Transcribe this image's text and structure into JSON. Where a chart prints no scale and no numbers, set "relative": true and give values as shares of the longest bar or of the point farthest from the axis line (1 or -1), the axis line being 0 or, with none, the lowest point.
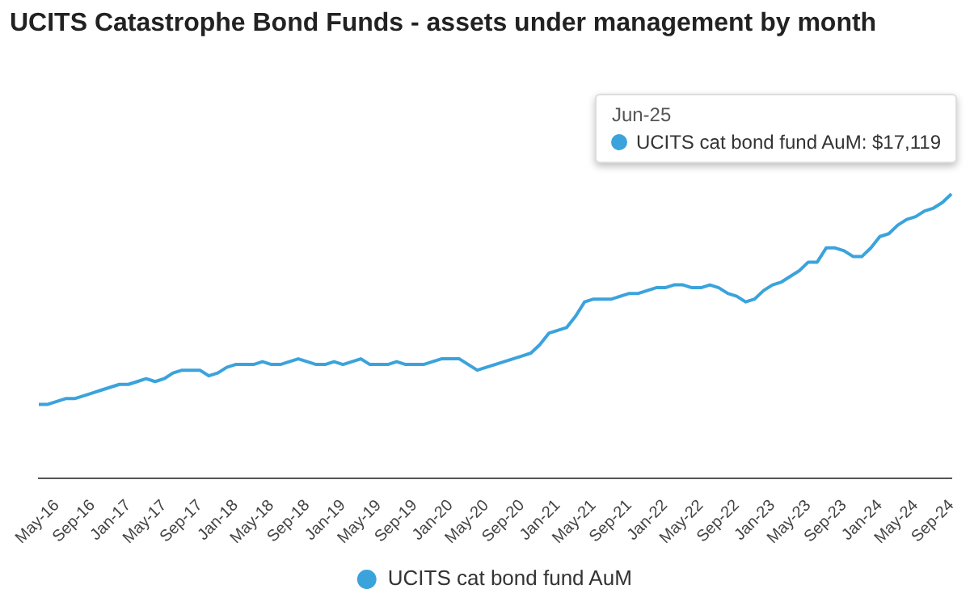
{
  "chart_data": {
    "type": "line",
    "title": "UCITS Catastrophe Bond Funds - assets under management by month",
    "relative": true,
    "legend": "bottom",
    "marker": "none",
    "line_style": "solid",
    "categories": [
      null,
      null,
      "May-16",
      null,
      null,
      null,
      "Sep-16",
      null,
      null,
      null,
      "Jan-17",
      null,
      null,
      null,
      "May-17",
      null,
      null,
      null,
      "Sep-17",
      null,
      null,
      null,
      "Jan-18",
      null,
      null,
      null,
      "May-18",
      null,
      null,
      null,
      "Sep-18",
      null,
      null,
      null,
      "Jan-19",
      null,
      null,
      null,
      "May-19",
      null,
      null,
      null,
      "Sep-19",
      null,
      null,
      null,
      "Jan-20",
      null,
      null,
      null,
      "May-20",
      null,
      null,
      null,
      "Sep-20",
      null,
      null,
      null,
      "Jan-21",
      null,
      null,
      null,
      "May-21",
      null,
      null,
      null,
      "Sep-21",
      null,
      null,
      null,
      "Jan-22",
      null,
      null,
      null,
      "May-22",
      null,
      null,
      null,
      "Sep-22",
      null,
      null,
      null,
      "Jan-23",
      null,
      null,
      null,
      "May-23",
      null,
      null,
      null,
      "Sep-23",
      null,
      null,
      null,
      "Jan-24",
      null,
      null,
      null,
      "May-24",
      null,
      null,
      null,
      "Sep-24"
    ],
    "series": [
      {
        "name": "UCITS cat bond fund AuM",
        "color": "#3ba3dc",
        "values": [
          0.26,
          0.26,
          0.27,
          0.28,
          0.28,
          0.29,
          0.3,
          0.31,
          0.32,
          0.33,
          0.33,
          0.34,
          0.35,
          0.34,
          0.35,
          0.37,
          0.38,
          0.38,
          0.38,
          0.36,
          0.37,
          0.39,
          0.4,
          0.4,
          0.4,
          0.41,
          0.4,
          0.4,
          0.41,
          0.42,
          0.41,
          0.4,
          0.4,
          0.41,
          0.4,
          0.41,
          0.42,
          0.4,
          0.4,
          0.4,
          0.41,
          0.4,
          0.4,
          0.4,
          0.41,
          0.42,
          0.42,
          0.42,
          0.4,
          0.38,
          0.39,
          0.4,
          0.41,
          0.42,
          0.43,
          0.44,
          0.47,
          0.51,
          0.52,
          0.53,
          0.57,
          0.62,
          0.63,
          0.63,
          0.63,
          0.64,
          0.65,
          0.65,
          0.66,
          0.67,
          0.67,
          0.68,
          0.68,
          0.67,
          0.67,
          0.68,
          0.67,
          0.65,
          0.64,
          0.62,
          0.63,
          0.66,
          0.68,
          0.69,
          0.71,
          0.73,
          0.76,
          0.76,
          0.81,
          0.81,
          0.8,
          0.78,
          0.78,
          0.81,
          0.85,
          0.86,
          0.89,
          0.91,
          0.92,
          0.94,
          0.95,
          0.97,
          1
        ]
      }
    ],
    "annotations": [
      "Jun-25",
      "UCITS cat bond fund AuM: $17,119"
    ]
  }
}
